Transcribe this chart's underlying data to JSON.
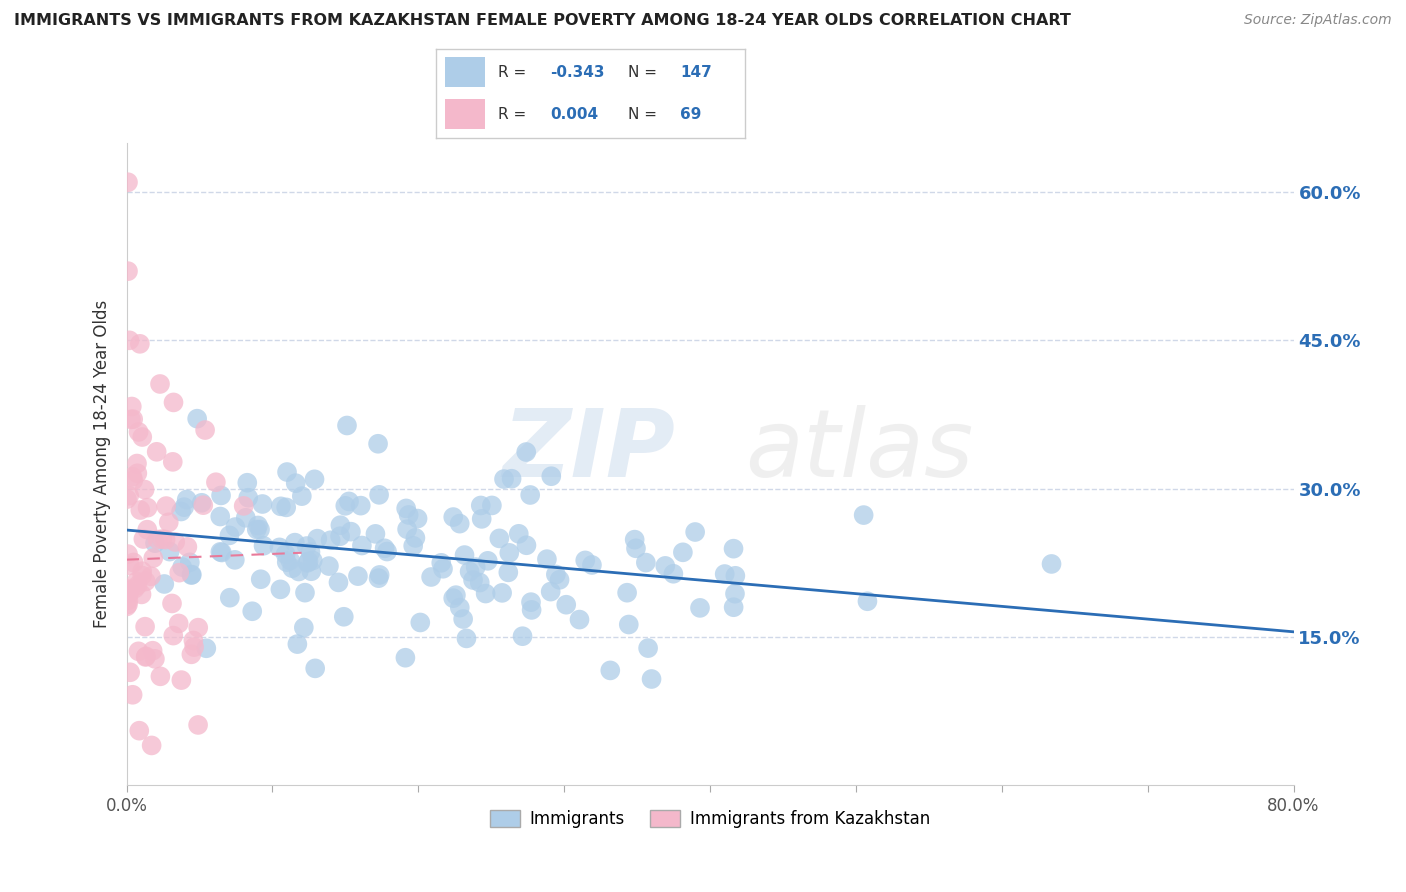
{
  "title": "IMMIGRANTS VS IMMIGRANTS FROM KAZAKHSTAN FEMALE POVERTY AMONG 18-24 YEAR OLDS CORRELATION CHART",
  "source": "Source: ZipAtlas.com",
  "ylabel": "Female Poverty Among 18-24 Year Olds",
  "xlim": [
    0,
    0.8
  ],
  "ylim": [
    0,
    0.65
  ],
  "yticks": [
    0.15,
    0.3,
    0.45,
    0.6
  ],
  "ytick_labels": [
    "15.0%",
    "30.0%",
    "45.0%",
    "60.0%"
  ],
  "xtick_positions": [
    0.0,
    0.1,
    0.2,
    0.3,
    0.4,
    0.5,
    0.6,
    0.7,
    0.8
  ],
  "xtick_edge_labels": [
    "0.0%",
    "",
    "",
    "",
    "",
    "",
    "",
    "",
    "80.0%"
  ],
  "blue_color": "#aecde8",
  "pink_color": "#f4b8cb",
  "blue_line_color": "#2b6db5",
  "pink_line_color": "#e87a9a",
  "background_color": "#ffffff",
  "grid_color": "#d0d8e8",
  "watermark_zip": "ZIP",
  "watermark_atlas": "atlas",
  "blue_trend_x": [
    0.0,
    0.8
  ],
  "blue_trend_y": [
    0.258,
    0.155
  ],
  "pink_trend_x": [
    0.0,
    0.12
  ],
  "pink_trend_y": [
    0.228,
    0.235
  ]
}
